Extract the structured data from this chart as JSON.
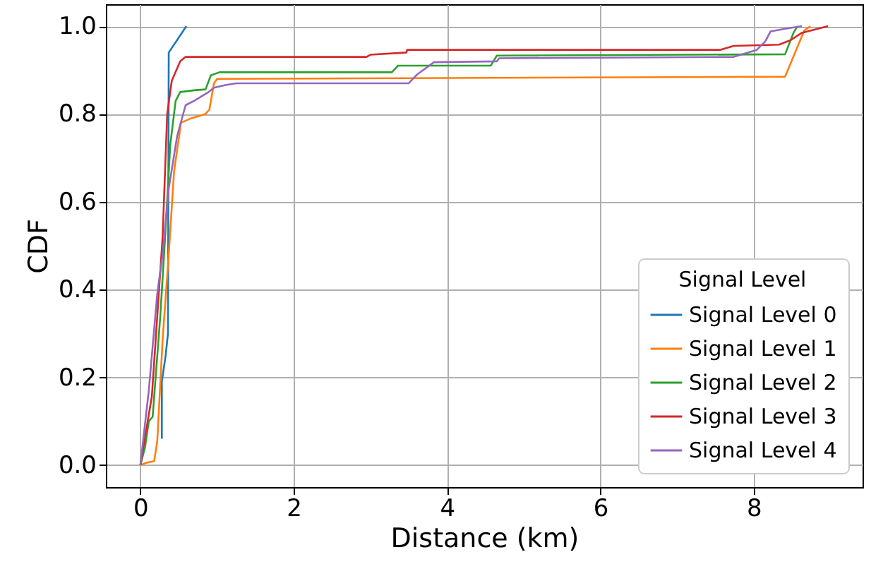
{
  "chart_data": {
    "type": "line",
    "xlabel": "Distance (km)",
    "ylabel": "CDF",
    "legend_title": "Signal Level",
    "xlim": [
      -0.45,
      9.42
    ],
    "ylim": [
      -0.05,
      1.05
    ],
    "xticks": [
      0,
      2,
      4,
      6,
      8
    ],
    "yticks": [
      {
        "value": 0,
        "label": "0.0"
      },
      0.2,
      0.4,
      0.6,
      0.8,
      {
        "value": 1,
        "label": "1.0"
      }
    ],
    "grid": true,
    "legend": "bottom right",
    "marker": "none",
    "line_style": "solid",
    "series": [
      {
        "name": "Signal Level 0",
        "color": "#1f77b4",
        "x": [
          0.28,
          0.28,
          0.33,
          0.36,
          0.37,
          0.6
        ],
        "values": [
          0.06,
          0.19,
          0.25,
          0.3,
          0.94,
          1.0
        ]
      },
      {
        "name": "Signal Level 1",
        "color": "#ff7f0e",
        "x": [
          0,
          0.07,
          0.18,
          0.22,
          0.29,
          0.37,
          0.44,
          0.53,
          0.66,
          0.85,
          0.9,
          0.96,
          1.0,
          8.41,
          8.66,
          8.74
        ],
        "values": [
          0,
          0.005,
          0.009,
          0.054,
          0.285,
          0.48,
          0.67,
          0.78,
          0.79,
          0.8,
          0.81,
          0.87,
          0.88,
          0.885,
          0.99,
          1.0
        ]
      },
      {
        "name": "Signal Level 2",
        "color": "#2ca02c",
        "x": [
          0,
          0.06,
          0.11,
          0.16,
          0.26,
          0.33,
          0.39,
          0.46,
          0.52,
          0.7,
          0.85,
          0.92,
          1.03,
          3.28,
          3.36,
          4.57,
          4.65,
          8.41,
          8.52,
          8.57
        ],
        "values": [
          0,
          0.04,
          0.1,
          0.11,
          0.34,
          0.54,
          0.73,
          0.83,
          0.85,
          0.854,
          0.856,
          0.888,
          0.895,
          0.895,
          0.91,
          0.91,
          0.933,
          0.936,
          0.985,
          1.0
        ]
      },
      {
        "name": "Signal Level 3",
        "color": "#d62728",
        "x": [
          0,
          0.15,
          0.29,
          0.35,
          0.41,
          0.52,
          0.59,
          2.95,
          3.0,
          3.47,
          3.48,
          7.56,
          7.74,
          8.33,
          8.48,
          8.63,
          8.97
        ],
        "values": [
          0,
          0.157,
          0.52,
          0.8,
          0.876,
          0.92,
          0.93,
          0.93,
          0.935,
          0.94,
          0.946,
          0.946,
          0.955,
          0.958,
          0.968,
          0.985,
          1.0
        ]
      },
      {
        "name": "Signal Level 4",
        "color": "#9467bd",
        "x": [
          0,
          0.11,
          0.22,
          0.29,
          0.37,
          0.48,
          0.59,
          0.7,
          0.89,
          0.96,
          1.11,
          1.25,
          3.5,
          3.61,
          3.83,
          4.65,
          4.68,
          7.74,
          8.04,
          8.15,
          8.22,
          8.41,
          8.63
        ],
        "values": [
          0,
          0.17,
          0.39,
          0.48,
          0.63,
          0.75,
          0.82,
          0.83,
          0.85,
          0.86,
          0.866,
          0.87,
          0.87,
          0.89,
          0.918,
          0.92,
          0.927,
          0.93,
          0.946,
          0.965,
          0.988,
          0.994,
          1.0
        ]
      }
    ]
  }
}
